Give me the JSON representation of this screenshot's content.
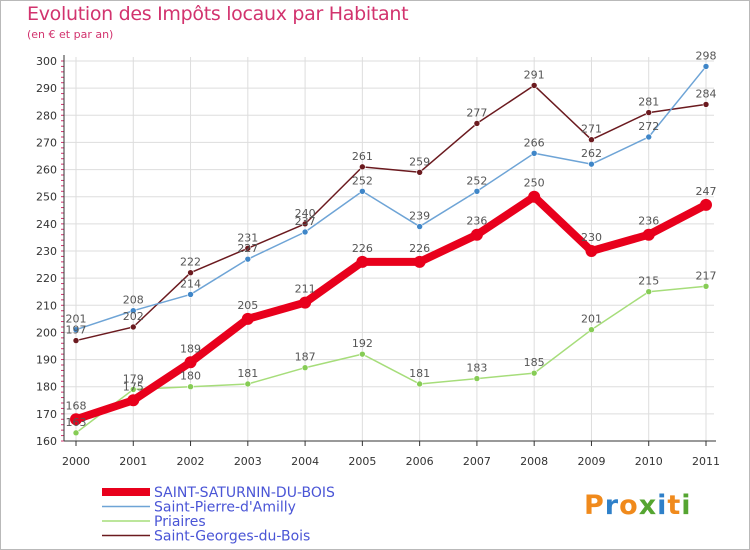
{
  "title": "Evolution des Impôts locaux par Habitant",
  "subtitle": "(en € et par an)",
  "logo": {
    "text": "Proxiti",
    "colors": [
      "#f08a1c",
      "#2f80c9",
      "#f08a1c",
      "#55a531",
      "#2f80c9",
      "#f08a1c",
      "#55a531"
    ]
  },
  "chart_data": {
    "type": "line",
    "x": [
      "2000",
      "2001",
      "2002",
      "2003",
      "2004",
      "2005",
      "2006",
      "2007",
      "2008",
      "2009",
      "2010",
      "2011"
    ],
    "ylim": [
      160,
      300
    ],
    "yticks": [
      160,
      170,
      180,
      190,
      200,
      210,
      220,
      230,
      240,
      250,
      260,
      270,
      280,
      290,
      300
    ],
    "grid": true,
    "legend_position": "bottom-left",
    "series": [
      {
        "name": "Saint-Georges-du-Bois",
        "color": "#6b1a1f",
        "marker": "#6b1a1f",
        "thick": false,
        "values": [
          197,
          202,
          222,
          231,
          240,
          261,
          259,
          277,
          291,
          271,
          281,
          284
        ],
        "labels": [
          "197",
          "202",
          "222",
          "231",
          "240",
          "261",
          "259",
          "277",
          "291",
          "271",
          "281",
          "284"
        ]
      },
      {
        "name": "Saint-Pierre-d'Amilly",
        "color": "#6ea4d6",
        "marker": "#3f86c8",
        "thick": false,
        "values": [
          201,
          208,
          214,
          227,
          237,
          252,
          239,
          252,
          266,
          262,
          272,
          298
        ],
        "labels": [
          "201",
          "208",
          "214",
          "227",
          "237",
          "252",
          "239",
          "252",
          "266",
          "262",
          "272",
          "298"
        ]
      },
      {
        "name": "Priaires",
        "color": "#a6dd7a",
        "marker": "#86cc55",
        "thick": false,
        "values": [
          163,
          179,
          180,
          181,
          187,
          192,
          181,
          183,
          185,
          201,
          215,
          217
        ],
        "labels": [
          "163",
          "179",
          "180",
          "181",
          "187",
          "192",
          "181",
          "183",
          "185",
          "201",
          "215",
          "217"
        ]
      },
      {
        "name": "SAINT-SATURNIN-DU-BOIS",
        "color": "#e8001c",
        "marker": "#e8001c",
        "thick": true,
        "values": [
          168,
          175,
          189,
          205,
          211,
          226,
          226,
          236,
          250,
          230,
          236,
          247
        ],
        "labels": [
          "168",
          "175",
          "189",
          "205",
          "211",
          "226",
          "226",
          "236",
          "250",
          "230",
          "236",
          "247"
        ]
      }
    ],
    "legend": [
      {
        "name": "SAINT-SATURNIN-DU-BOIS",
        "color": "#e8001c",
        "thick": true
      },
      {
        "name": "Saint-Pierre-d'Amilly",
        "color": "#6ea4d6",
        "thick": false
      },
      {
        "name": "Priaires",
        "color": "#a6dd7a",
        "thick": false
      },
      {
        "name": "Saint-Georges-du-Bois",
        "color": "#6b1a1f",
        "thick": false
      }
    ],
    "legend_text_color": "#4a55d6",
    "value_label_color": "#555555",
    "axis_color": "#333333",
    "tick_color": "#d2336e",
    "grid_color": "#dddddd"
  }
}
